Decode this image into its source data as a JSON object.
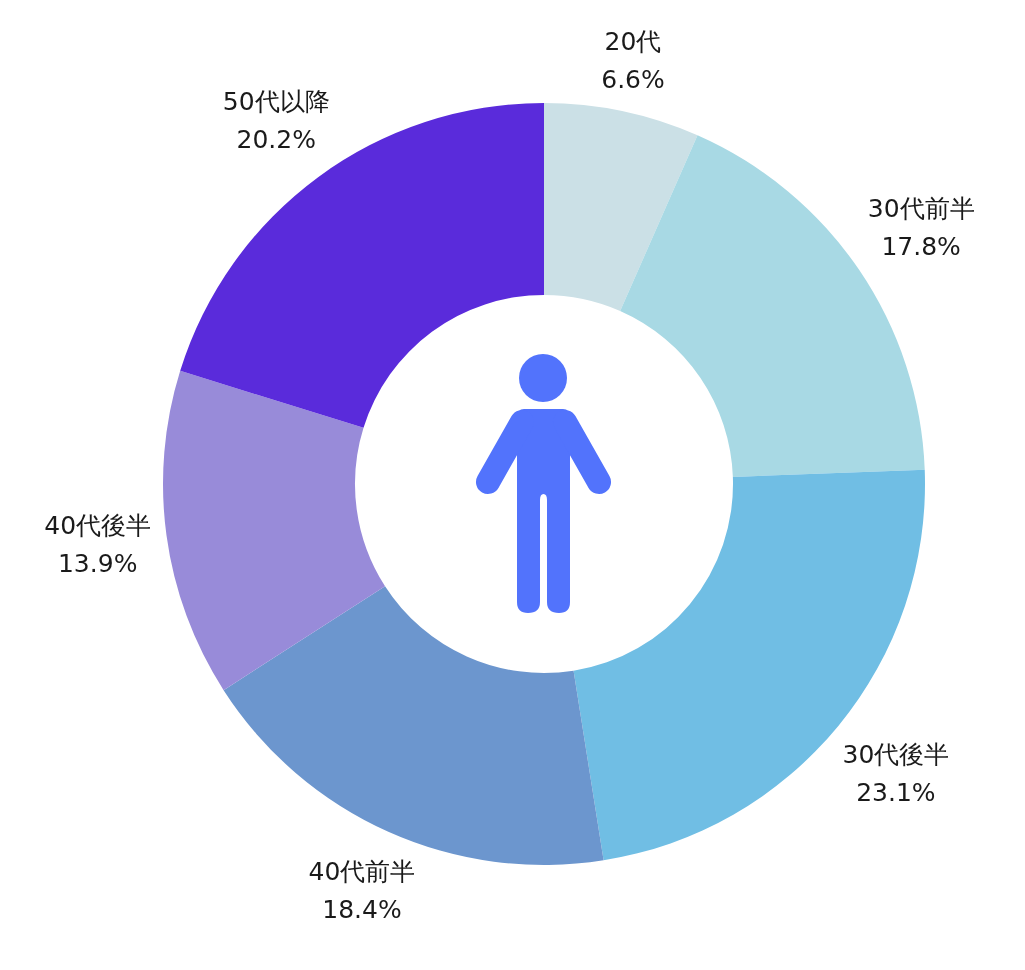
{
  "chart_data": {
    "type": "donut",
    "categories": [
      "20代",
      "30代前半",
      "30代後半",
      "40代前半",
      "40代後半",
      "50代以降"
    ],
    "values": [
      6.6,
      17.8,
      23.1,
      18.4,
      13.9,
      20.2
    ],
    "value_labels": [
      "6.6%",
      "17.8%",
      "23.1%",
      "18.4%",
      "13.9%",
      "20.2%"
    ],
    "colors": [
      "#cbe0e6",
      "#a8d9e4",
      "#70bee4",
      "#6c96ce",
      "#988bd9",
      "#5a2bdb"
    ]
  }
}
